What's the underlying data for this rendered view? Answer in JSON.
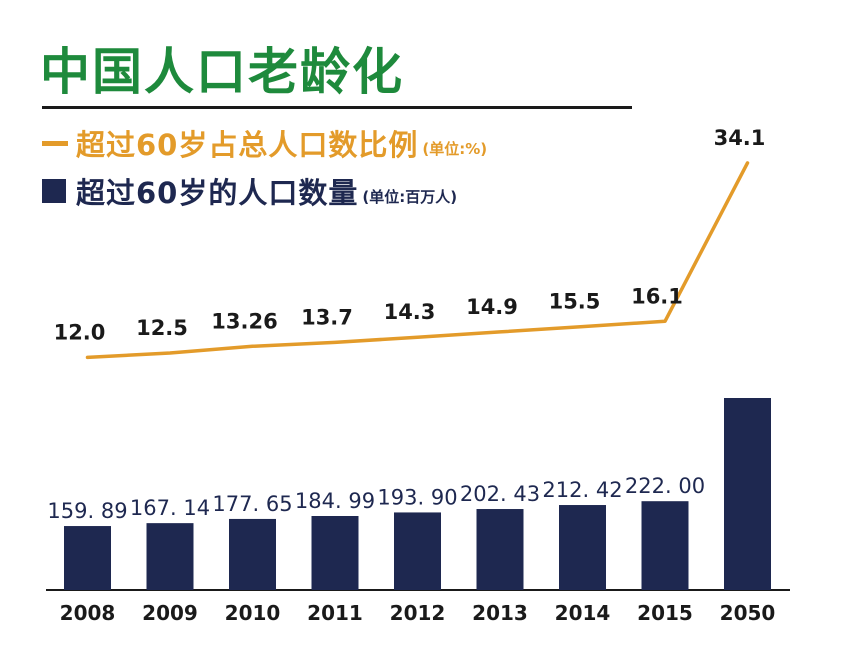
{
  "colors": {
    "title": "#1e8a3c",
    "ratio_line": "#e39b2a",
    "bars": "#1e2850",
    "text": "#1a1a1a"
  },
  "chart_data": {
    "type": "bar",
    "title": "中国人口老龄化",
    "categories": [
      "2008",
      "2009",
      "2010",
      "2011",
      "2012",
      "2013",
      "2014",
      "2015",
      "2050"
    ],
    "series": [
      {
        "name": "超过60岁的人口数量",
        "unit": "(单位:百万人)",
        "type": "bar",
        "values": [
          159.89,
          167.14,
          177.65,
          184.99,
          193.9,
          202.43,
          212.42,
          222.0,
          480
        ],
        "labels": [
          "159. 89",
          "167. 14",
          "177. 65",
          "184. 99",
          "193. 90",
          "202. 43",
          "212. 42",
          "222. 00",
          ""
        ]
      },
      {
        "name": "超过60岁占总人口数比例",
        "unit": "(单位:%)",
        "type": "line",
        "values": [
          12.0,
          12.5,
          13.26,
          13.7,
          14.3,
          14.9,
          15.5,
          16.1,
          34.1
        ],
        "labels": [
          "12.0",
          "12.5",
          "13.26",
          "13.7",
          "14.3",
          "14.9",
          "15.5",
          "16.1",
          "34.1"
        ]
      }
    ],
    "legend_position": "top-left",
    "grid": false
  }
}
